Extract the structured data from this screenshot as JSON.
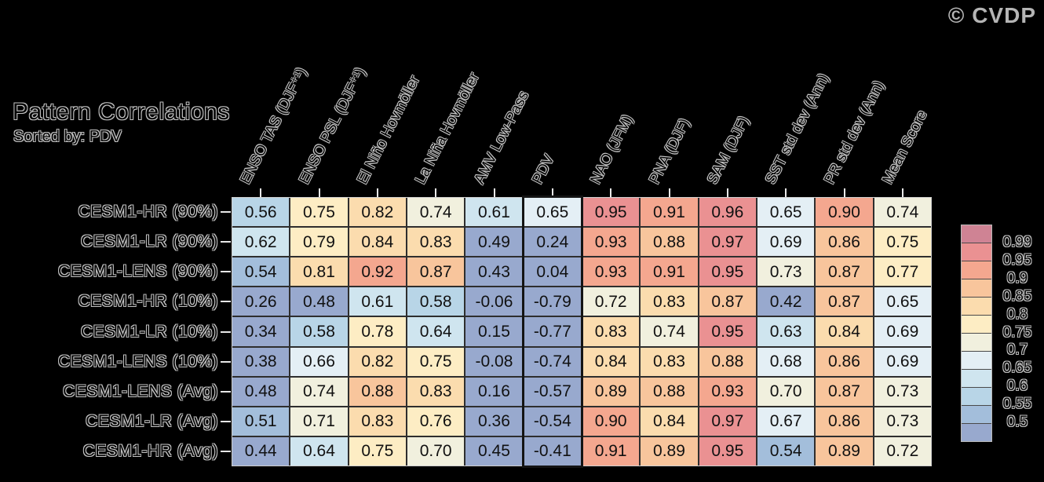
{
  "copyright": "© CVDP",
  "chart_data": {
    "type": "heatmap",
    "title": "Pattern Correlations",
    "subtitle": "Sorted by: PDV",
    "sorted_by": "PDV",
    "highlighted_column": "PDV",
    "columns": [
      "ENSO TAS (DJF⁺¹)",
      "ENSO PSL (DJF⁺¹)",
      "El Niño Hovmöller",
      "La Niña Hovmöller",
      "AMV Low-Pass",
      "PDV",
      "NAO (JFM)",
      "PNA (DJF)",
      "SAM (DJF)",
      "SST std dev (Ann)",
      "PR std dev (Ann)",
      "Mean Score"
    ],
    "rows": [
      {
        "label": "CESM1-HR (90%)",
        "values": [
          0.56,
          0.75,
          0.82,
          0.74,
          0.61,
          0.65,
          0.95,
          0.91,
          0.96,
          0.65,
          0.9,
          0.74
        ]
      },
      {
        "label": "CESM1-LR (90%)",
        "values": [
          0.62,
          0.79,
          0.84,
          0.83,
          0.49,
          0.24,
          0.93,
          0.88,
          0.97,
          0.69,
          0.86,
          0.75
        ]
      },
      {
        "label": "CESM1-LENS (90%)",
        "values": [
          0.54,
          0.81,
          0.92,
          0.87,
          0.43,
          0.04,
          0.93,
          0.91,
          0.95,
          0.73,
          0.87,
          0.77
        ]
      },
      {
        "label": "CESM1-HR (10%)",
        "values": [
          0.26,
          0.48,
          0.61,
          0.58,
          -0.06,
          -0.79,
          0.72,
          0.83,
          0.87,
          0.42,
          0.87,
          0.65
        ]
      },
      {
        "label": "CESM1-LR (10%)",
        "values": [
          0.34,
          0.58,
          0.78,
          0.64,
          0.15,
          -0.77,
          0.83,
          0.74,
          0.95,
          0.63,
          0.84,
          0.69
        ]
      },
      {
        "label": "CESM1-LENS (10%)",
        "values": [
          0.38,
          0.66,
          0.82,
          0.75,
          -0.08,
          -0.74,
          0.84,
          0.83,
          0.88,
          0.68,
          0.86,
          0.69
        ]
      },
      {
        "label": "CESM1-LENS (Avg)",
        "values": [
          0.48,
          0.74,
          0.88,
          0.83,
          0.16,
          -0.57,
          0.89,
          0.88,
          0.93,
          0.7,
          0.87,
          0.73
        ]
      },
      {
        "label": "CESM1-LR (Avg)",
        "values": [
          0.51,
          0.71,
          0.83,
          0.76,
          0.36,
          -0.54,
          0.9,
          0.84,
          0.97,
          0.67,
          0.86,
          0.73
        ]
      },
      {
        "label": "CESM1-HR (Avg)",
        "values": [
          0.44,
          0.64,
          0.75,
          0.7,
          0.45,
          -0.41,
          0.91,
          0.89,
          0.95,
          0.54,
          0.89,
          0.72
        ]
      }
    ],
    "value_format": "2 decimal places",
    "colorbar": {
      "position": "right",
      "tick_labels": [
        "0.99",
        "0.95",
        "0.9",
        "0.85",
        "0.8",
        "0.75",
        "0.7",
        "0.65",
        "0.6",
        "0.55",
        "0.5"
      ],
      "thresholds": [
        0.99,
        0.95,
        0.9,
        0.85,
        0.8,
        0.75,
        0.7,
        0.65,
        0.6,
        0.55,
        0.5
      ],
      "segment_colors": [
        "#cf8394",
        "#ea9192",
        "#f4a78f",
        "#f8c59c",
        "#fbdcae",
        "#fdedc4",
        "#f1f0de",
        "#e4eff5",
        "#cfe5ef",
        "#b8d5e7",
        "#a3bedb",
        "#98a9ce"
      ]
    }
  },
  "style": {
    "background": "#000000",
    "cell_text": "#111111",
    "grid_line": "#2e2e2e",
    "table_border": "#cfcfcf",
    "ghost_text_outline": "#c4c4c4",
    "highlight_border": "#141414",
    "tick_color": "#e8e8e8",
    "copyright_color": "#b5b5b5"
  }
}
